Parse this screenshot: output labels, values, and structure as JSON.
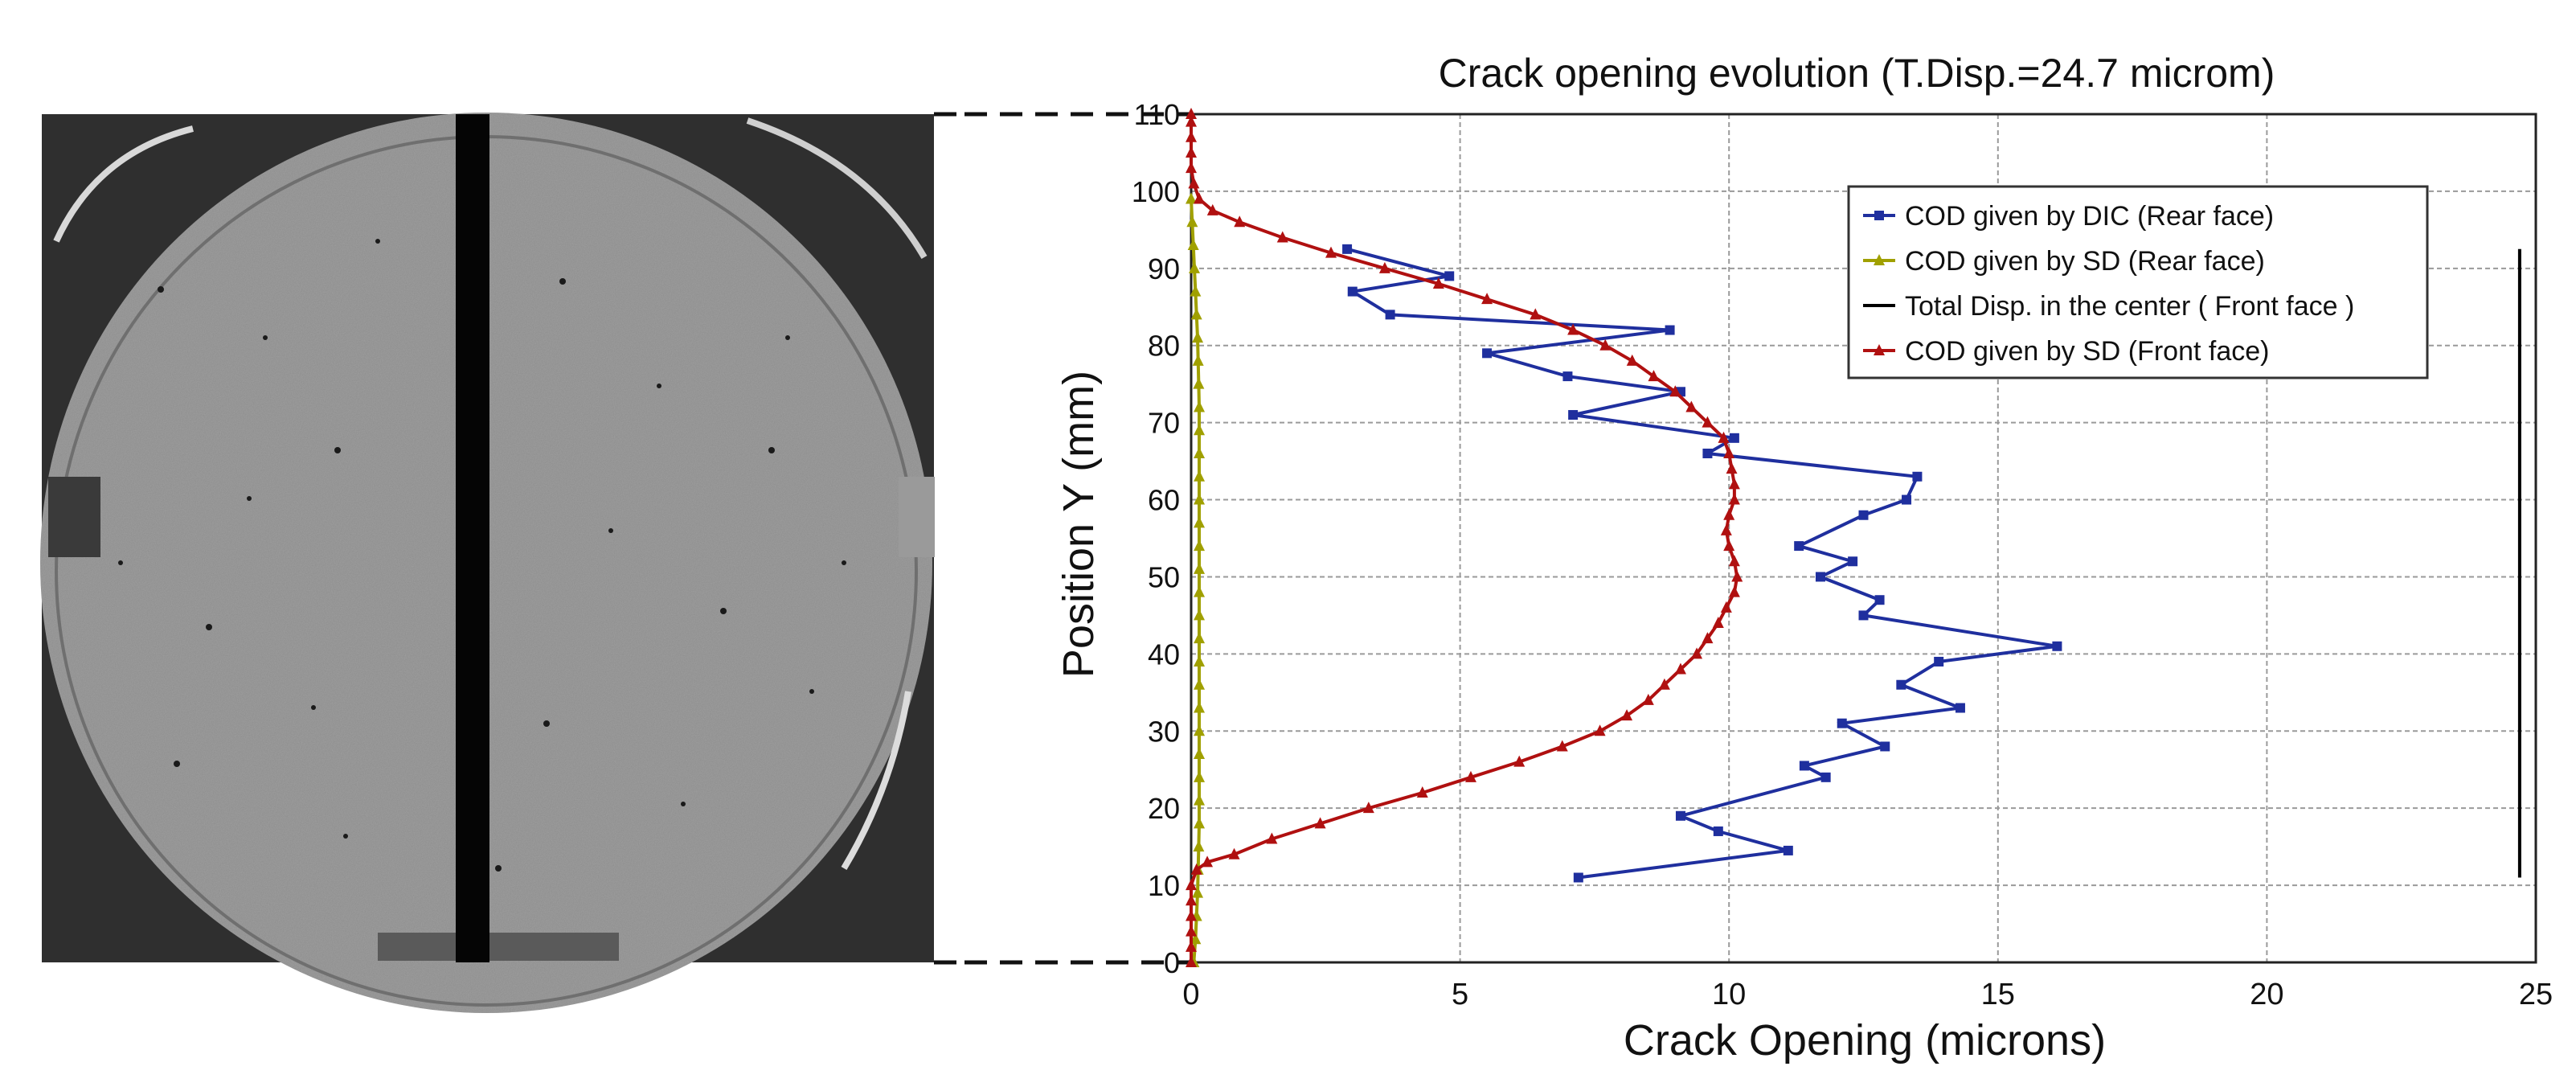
{
  "chart_data": {
    "type": "line",
    "title": "Crack opening evolution (T.Disp.=24.7 microm)",
    "xlabel": "Crack Opening (microns)",
    "ylabel": "Position Y (mm)",
    "xlim": [
      0,
      25
    ],
    "ylim": [
      0,
      110
    ],
    "xticks": [
      "0",
      "5",
      "10",
      "15",
      "20",
      "25"
    ],
    "yticks": [
      "0",
      "10",
      "20",
      "30",
      "40",
      "50",
      "60",
      "70",
      "80",
      "90",
      "100",
      "110"
    ],
    "grid": true,
    "legend_position": "top-right",
    "series": [
      {
        "name": "COD given by DIC (Rear face)",
        "color": "#1f2f9e",
        "marker": "square",
        "points": [
          [
            7.2,
            11
          ],
          [
            11.1,
            14.5
          ],
          [
            9.8,
            17
          ],
          [
            9.1,
            19
          ],
          [
            11.8,
            24
          ],
          [
            11.4,
            25.5
          ],
          [
            12.9,
            28
          ],
          [
            12.1,
            31
          ],
          [
            14.3,
            33
          ],
          [
            13.2,
            36
          ],
          [
            13.9,
            39
          ],
          [
            16.1,
            41
          ],
          [
            12.5,
            45
          ],
          [
            12.8,
            47
          ],
          [
            11.7,
            50
          ],
          [
            12.3,
            52
          ],
          [
            11.3,
            54
          ],
          [
            12.5,
            58
          ],
          [
            13.3,
            60
          ],
          [
            13.5,
            63
          ],
          [
            9.6,
            66
          ],
          [
            10.1,
            68
          ],
          [
            7.1,
            71
          ],
          [
            9.1,
            74
          ],
          [
            7.0,
            76
          ],
          [
            5.5,
            79
          ],
          [
            8.9,
            82
          ],
          [
            3.7,
            84
          ],
          [
            3.0,
            87
          ],
          [
            4.8,
            89
          ],
          [
            2.9,
            92.5
          ]
        ]
      },
      {
        "name": "COD given by SD (Rear face)",
        "color": "#a0a000",
        "marker": "triangle",
        "points": [
          [
            0.05,
            0
          ],
          [
            0.08,
            3
          ],
          [
            0.1,
            6
          ],
          [
            0.12,
            9
          ],
          [
            0.13,
            12
          ],
          [
            0.14,
            15
          ],
          [
            0.15,
            18
          ],
          [
            0.15,
            21
          ],
          [
            0.15,
            24
          ],
          [
            0.15,
            27
          ],
          [
            0.15,
            30
          ],
          [
            0.15,
            33
          ],
          [
            0.15,
            36
          ],
          [
            0.15,
            39
          ],
          [
            0.15,
            42
          ],
          [
            0.15,
            45
          ],
          [
            0.15,
            48
          ],
          [
            0.15,
            51
          ],
          [
            0.15,
            54
          ],
          [
            0.15,
            57
          ],
          [
            0.15,
            60
          ],
          [
            0.15,
            63
          ],
          [
            0.15,
            66
          ],
          [
            0.15,
            69
          ],
          [
            0.15,
            72
          ],
          [
            0.14,
            75
          ],
          [
            0.13,
            78
          ],
          [
            0.12,
            81
          ],
          [
            0.1,
            84
          ],
          [
            0.08,
            87
          ],
          [
            0.06,
            90
          ],
          [
            0.04,
            93
          ],
          [
            0.02,
            96
          ],
          [
            0.0,
            99
          ]
        ]
      },
      {
        "name": "Total Disp. in the center ( Front face )",
        "color": "#000000",
        "marker": "none",
        "points": [
          [
            24.7,
            11
          ],
          [
            24.7,
            92.5
          ]
        ]
      },
      {
        "name": "COD given by SD (Front face)",
        "color": "#b01010",
        "marker": "triangle",
        "points": [
          [
            0,
            0
          ],
          [
            0,
            2
          ],
          [
            0,
            4
          ],
          [
            0,
            6
          ],
          [
            0,
            8
          ],
          [
            0,
            10
          ],
          [
            0.1,
            12
          ],
          [
            0.3,
            13
          ],
          [
            0.8,
            14
          ],
          [
            1.5,
            16
          ],
          [
            2.4,
            18
          ],
          [
            3.3,
            20
          ],
          [
            4.3,
            22
          ],
          [
            5.2,
            24
          ],
          [
            6.1,
            26
          ],
          [
            6.9,
            28
          ],
          [
            7.6,
            30
          ],
          [
            8.1,
            32
          ],
          [
            8.5,
            34
          ],
          [
            8.8,
            36
          ],
          [
            9.1,
            38
          ],
          [
            9.4,
            40
          ],
          [
            9.6,
            42
          ],
          [
            9.8,
            44
          ],
          [
            9.95,
            46
          ],
          [
            10.1,
            48
          ],
          [
            10.15,
            50
          ],
          [
            10.1,
            52
          ],
          [
            10.0,
            54
          ],
          [
            9.95,
            56
          ],
          [
            10.0,
            58
          ],
          [
            10.1,
            60
          ],
          [
            10.1,
            62
          ],
          [
            10.05,
            64
          ],
          [
            10.0,
            66
          ],
          [
            9.9,
            68
          ],
          [
            9.6,
            70
          ],
          [
            9.3,
            72
          ],
          [
            9.0,
            74
          ],
          [
            8.6,
            76
          ],
          [
            8.2,
            78
          ],
          [
            7.7,
            80
          ],
          [
            7.1,
            82
          ],
          [
            6.4,
            84
          ],
          [
            5.5,
            86
          ],
          [
            4.6,
            88
          ],
          [
            3.6,
            90
          ],
          [
            2.6,
            92
          ],
          [
            1.7,
            94
          ],
          [
            0.9,
            96
          ],
          [
            0.4,
            97.5
          ],
          [
            0.15,
            99
          ],
          [
            0.05,
            101
          ],
          [
            0,
            103
          ],
          [
            0,
            105
          ],
          [
            0,
            107
          ],
          [
            0,
            109
          ],
          [
            0,
            110
          ]
        ]
      }
    ]
  }
}
